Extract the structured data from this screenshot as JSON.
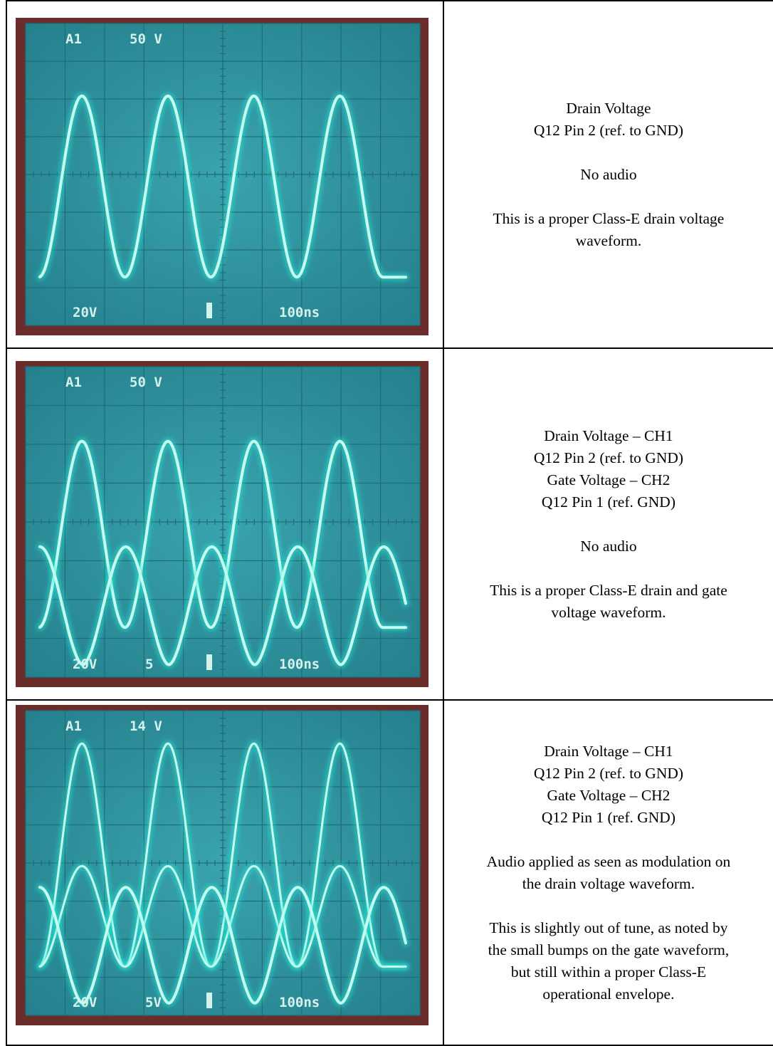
{
  "rows": [
    {
      "scope": {
        "ch_label": "A1",
        "trigger_level": "50 V",
        "ch1_scale": "20V",
        "ch2_scale": "",
        "timebase": "100ns",
        "dual": false,
        "modulated": false
      },
      "text": {
        "l1": "Drain Voltage",
        "l2": "Q12 Pin 2 (ref. to GND)",
        "l3": "",
        "l4": "",
        "audio": "No audio",
        "note_a": "This is a proper Class-E drain voltage",
        "note_b": "waveform.",
        "note_c": "",
        "note_d": ""
      }
    },
    {
      "scope": {
        "ch_label": "A1",
        "trigger_level": "50 V",
        "ch1_scale": "20V",
        "ch2_scale": "5",
        "timebase": "100ns",
        "dual": true,
        "modulated": false
      },
      "text": {
        "l1": "Drain Voltage – CH1",
        "l2": "Q12 Pin 2 (ref. to GND)",
        "l3": "Gate Voltage – CH2",
        "l4": "Q12 Pin 1 (ref. GND)",
        "audio": "No audio",
        "note_a": "This is a proper Class-E drain and gate",
        "note_b": "voltage waveform.",
        "note_c": "",
        "note_d": ""
      }
    },
    {
      "scope": {
        "ch_label": "A1",
        "trigger_level": "14 V",
        "ch1_scale": "20V",
        "ch2_scale": "5V",
        "timebase": "100ns",
        "dual": true,
        "modulated": true
      },
      "text": {
        "l1": "Drain Voltage – CH1",
        "l2": "Q12 Pin 2 (ref. to GND)",
        "l3": "Gate Voltage – CH2",
        "l4": "Q12 Pin 1 (ref. GND)",
        "audio_a": "Audio applied as seen as modulation on",
        "audio_b": "the drain voltage waveform.",
        "note_a": "This is slightly out of tune, as noted by",
        "note_b": "the small bumps on the gate waveform,",
        "note_c": "but still within a proper Class-E",
        "note_d": "operational envelope."
      }
    }
  ],
  "colors": {
    "screen": "#2c8f9a",
    "trace": "#c8fbf0",
    "glow": "#25e8d6",
    "bezel": "#6b2d2a"
  }
}
